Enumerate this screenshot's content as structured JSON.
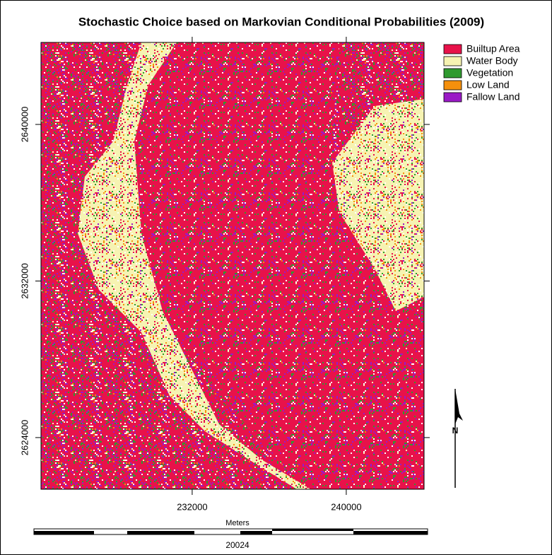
{
  "map": {
    "title": "Stochastic Choice based on Markovian Conditional Probabilities (2009)",
    "legend": [
      {
        "name": "Builtup Area",
        "color": "#e8124a"
      },
      {
        "name": "Water Body",
        "color": "#f6f3b2"
      },
      {
        "name": "Vegetation",
        "color": "#2f9a2f"
      },
      {
        "name": "Low Land",
        "color": "#f5900c"
      },
      {
        "name": "Fallow Land",
        "color": "#9a1ac6"
      }
    ],
    "xlim": [
      224150,
      244040
    ],
    "ylim": [
      2621360,
      2644190
    ],
    "xticks": [
      232000,
      240000
    ],
    "yticks": [
      2640000,
      2632000,
      2624000
    ],
    "scale_bar": {
      "unit": "Meters",
      "length_label": "20024"
    },
    "north_label": "N"
  }
}
